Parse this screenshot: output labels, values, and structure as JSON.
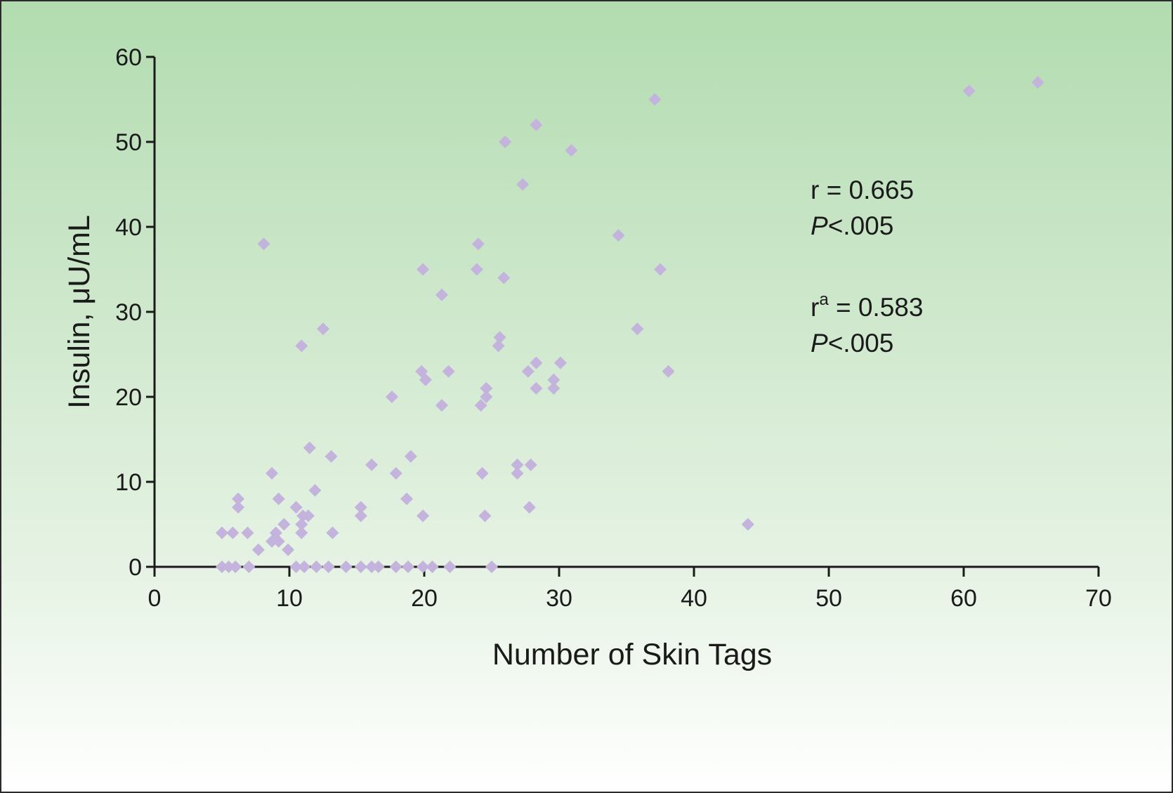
{
  "chart_data": {
    "type": "scatter",
    "title": "",
    "xlabel": "Number of Skin Tags",
    "ylabel": "Insulin, μU/mL",
    "xlim": [
      0,
      70
    ],
    "ylim": [
      0,
      60
    ],
    "xticks": [
      "0",
      "10",
      "20",
      "30",
      "40",
      "50",
      "60",
      "70"
    ],
    "yticks": [
      "0",
      "10",
      "20",
      "30",
      "40",
      "50",
      "60"
    ],
    "grid": false,
    "marker_color": "#c3b3dd",
    "annotations": [
      {
        "lines": [
          {
            "text": "r = 0.665"
          },
          {
            "italic": "P",
            "text": "<.005"
          }
        ]
      },
      {
        "lines": [
          {
            "text": "r",
            "sup": "a",
            "rest": " = 0.583"
          },
          {
            "italic": "P",
            "text": "<.005"
          }
        ]
      }
    ],
    "series": [
      {
        "points": [
          [
            5,
            0
          ],
          [
            5.5,
            0
          ],
          [
            6,
            0
          ],
          [
            7,
            0
          ],
          [
            5,
            4
          ],
          [
            5.8,
            4
          ],
          [
            6.2,
            7
          ],
          [
            6.2,
            8
          ],
          [
            6.9,
            4
          ],
          [
            7.7,
            2
          ],
          [
            8.1,
            38
          ],
          [
            8.7,
            11
          ],
          [
            8.7,
            3
          ],
          [
            9,
            4
          ],
          [
            9.2,
            8
          ],
          [
            9.2,
            3
          ],
          [
            9.6,
            5
          ],
          [
            9.9,
            2
          ],
          [
            10.5,
            7
          ],
          [
            10.5,
            0
          ],
          [
            10.9,
            26
          ],
          [
            10.9,
            5
          ],
          [
            10.9,
            4
          ],
          [
            11,
            6
          ],
          [
            11.1,
            0
          ],
          [
            11.4,
            6
          ],
          [
            11.5,
            14
          ],
          [
            11.9,
            9
          ],
          [
            12,
            0
          ],
          [
            12.5,
            28
          ],
          [
            12.9,
            0
          ],
          [
            13.1,
            13
          ],
          [
            13.2,
            4
          ],
          [
            14.2,
            0
          ],
          [
            15.3,
            7
          ],
          [
            15.3,
            6
          ],
          [
            15.3,
            0
          ],
          [
            16.1,
            12
          ],
          [
            16.1,
            0
          ],
          [
            16.6,
            0
          ],
          [
            17.6,
            20
          ],
          [
            17.9,
            11
          ],
          [
            17.9,
            0
          ],
          [
            18.7,
            8
          ],
          [
            18.8,
            0
          ],
          [
            19,
            13
          ],
          [
            19.8,
            23
          ],
          [
            19.9,
            35
          ],
          [
            19.9,
            6
          ],
          [
            19.9,
            0
          ],
          [
            20.1,
            22
          ],
          [
            20.6,
            0
          ],
          [
            21.3,
            32
          ],
          [
            21.3,
            19
          ],
          [
            21.8,
            23
          ],
          [
            21.9,
            0
          ],
          [
            23.9,
            35
          ],
          [
            24,
            38
          ],
          [
            24.2,
            19
          ],
          [
            24.3,
            11
          ],
          [
            24.5,
            6
          ],
          [
            24.6,
            21
          ],
          [
            24.6,
            20
          ],
          [
            25,
            0
          ],
          [
            25.5,
            26
          ],
          [
            25.6,
            27
          ],
          [
            25.9,
            34
          ],
          [
            26,
            50
          ],
          [
            26.9,
            12
          ],
          [
            26.9,
            11
          ],
          [
            27.3,
            45
          ],
          [
            27.7,
            23
          ],
          [
            27.8,
            7
          ],
          [
            27.9,
            12
          ],
          [
            28.3,
            52
          ],
          [
            28.3,
            24
          ],
          [
            28.3,
            21
          ],
          [
            29.6,
            22
          ],
          [
            29.6,
            21
          ],
          [
            30.1,
            24
          ],
          [
            30.9,
            49
          ],
          [
            34.4,
            39
          ],
          [
            35.8,
            28
          ],
          [
            37.1,
            55
          ],
          [
            37.5,
            35
          ],
          [
            38.1,
            23
          ],
          [
            44,
            5
          ],
          [
            60.4,
            56
          ],
          [
            65.5,
            57
          ]
        ]
      }
    ]
  }
}
